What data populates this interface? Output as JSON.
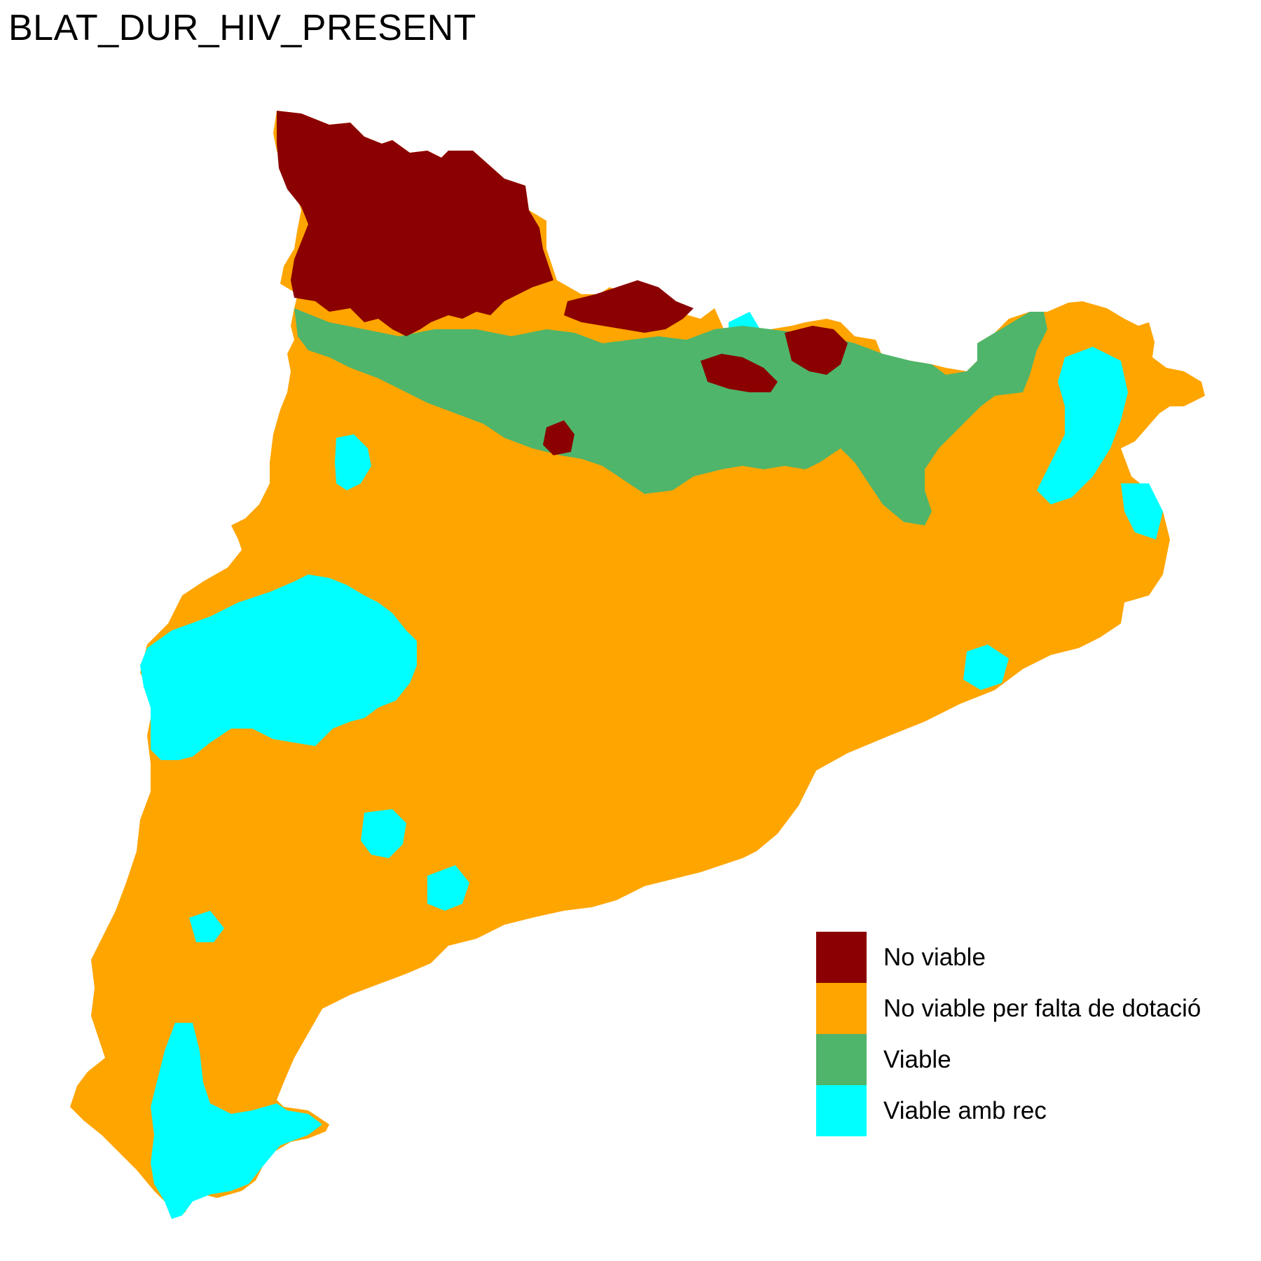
{
  "title": "BLAT_DUR_HIV_PRESENT",
  "legend": {
    "items": [
      {
        "label": "No viable",
        "color": "#8B0000"
      },
      {
        "label": "No viable per falta de dotació",
        "color": "#FFA500"
      },
      {
        "label": "Viable",
        "color": "#4FB56A"
      },
      {
        "label": "Viable amb rec",
        "color": "#00FFFF"
      }
    ]
  }
}
